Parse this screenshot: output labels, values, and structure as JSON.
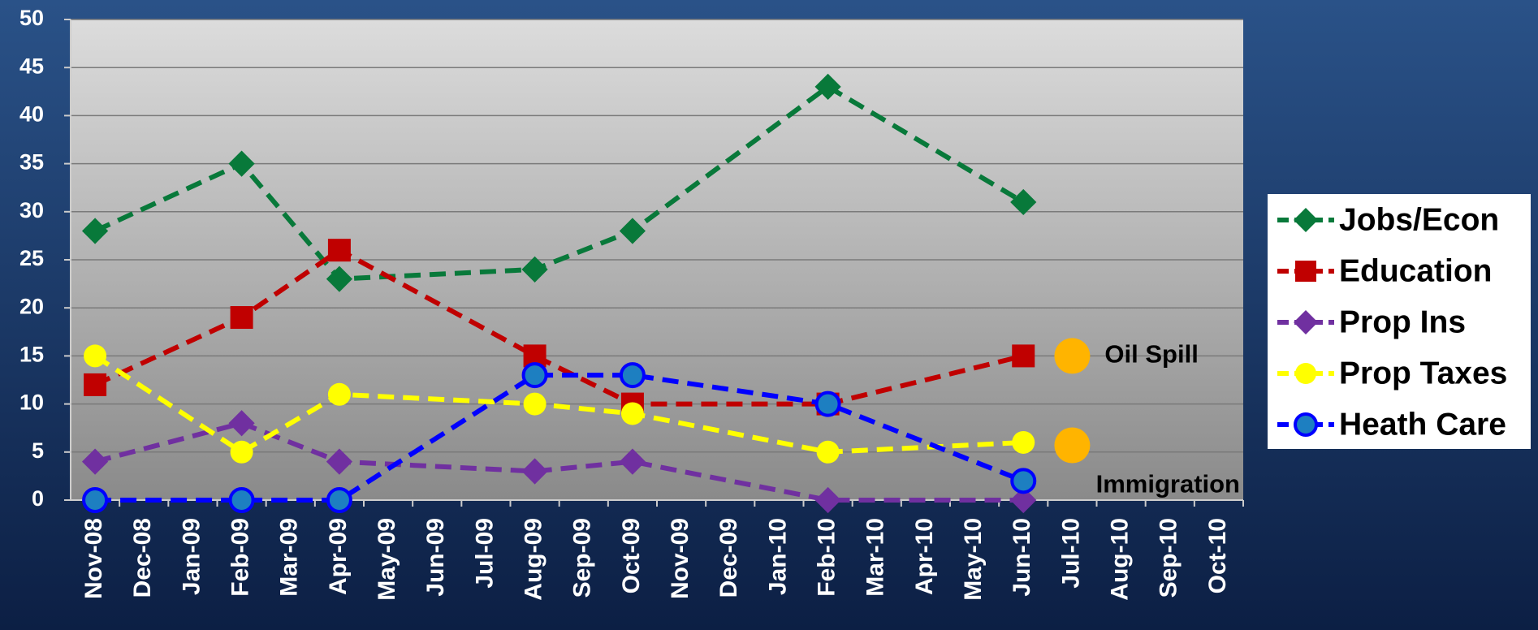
{
  "chart_data": {
    "type": "line",
    "categories": [
      "Nov-08",
      "Dec-08",
      "Jan-09",
      "Feb-09",
      "Mar-09",
      "Apr-09",
      "May-09",
      "Jun-09",
      "Jul-09",
      "Aug-09",
      "Sep-09",
      "Oct-09",
      "Nov-09",
      "Dec-09",
      "Jan-10",
      "Feb-10",
      "Mar-10",
      "Apr-10",
      "May-10",
      "Jun-10",
      "Jul-10",
      "Aug-10",
      "Sep-10",
      "Oct-10"
    ],
    "series": [
      {
        "name": "Jobs/Econ",
        "color": "#08793a",
        "marker": "diamond",
        "values": [
          28,
          null,
          null,
          35,
          null,
          23,
          null,
          null,
          null,
          24,
          null,
          28,
          null,
          null,
          null,
          43,
          null,
          null,
          null,
          31,
          null,
          null,
          null,
          null
        ]
      },
      {
        "name": "Education",
        "color": "#c00000",
        "marker": "square",
        "values": [
          12,
          null,
          null,
          19,
          null,
          26,
          null,
          null,
          null,
          15,
          null,
          10,
          null,
          null,
          null,
          10,
          null,
          null,
          null,
          15,
          null,
          null,
          null,
          null
        ]
      },
      {
        "name": "Prop Ins",
        "color": "#7030a0",
        "marker": "diamond",
        "values": [
          4,
          null,
          null,
          8,
          null,
          4,
          null,
          null,
          null,
          3,
          null,
          4,
          null,
          null,
          null,
          0,
          null,
          null,
          null,
          0,
          null,
          null,
          null,
          null
        ]
      },
      {
        "name": "Prop Taxes",
        "color": "#ffff00",
        "marker": "circle",
        "values": [
          15,
          null,
          null,
          5,
          null,
          11,
          null,
          null,
          null,
          10,
          null,
          9,
          null,
          null,
          null,
          5,
          null,
          null,
          null,
          6,
          null,
          null,
          null,
          null
        ]
      },
      {
        "name": "Heath Care",
        "color": "#0000ff",
        "marker_fill": "#1d7fc1",
        "marker": "circle",
        "values": [
          0,
          null,
          null,
          0,
          null,
          0,
          null,
          null,
          null,
          13,
          null,
          13,
          null,
          null,
          null,
          10,
          null,
          null,
          null,
          2,
          null,
          null,
          null,
          null
        ]
      }
    ],
    "connect_gaps": true,
    "annotations": [
      {
        "text": "Oil Spill",
        "category": "Jul-10",
        "value": 15,
        "color": "#ffb400"
      },
      {
        "text": "Immigration",
        "category": "Jul-10",
        "value": 5.7,
        "color": "#ffb400"
      }
    ],
    "ylim": [
      0,
      50
    ],
    "yticks": [
      0,
      5,
      10,
      15,
      20,
      25,
      30,
      35,
      40,
      45,
      50
    ],
    "grid": true,
    "legend": "right"
  }
}
